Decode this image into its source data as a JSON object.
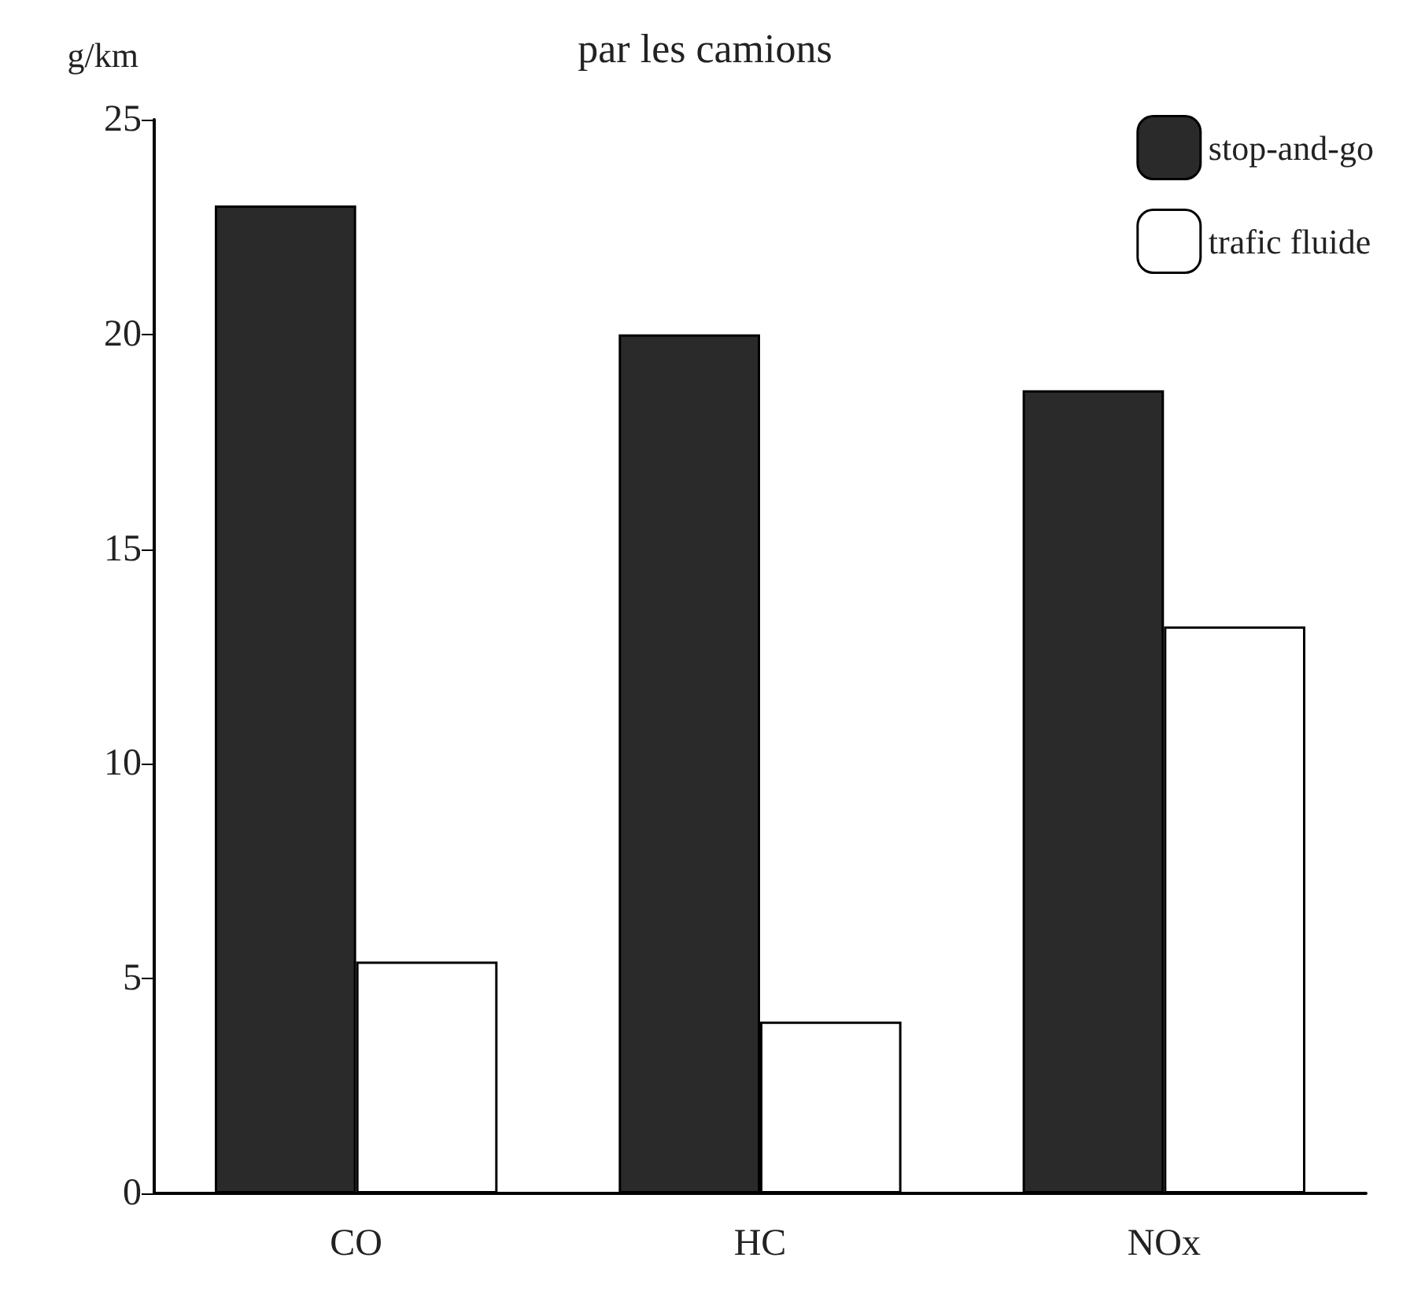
{
  "chart_data": {
    "type": "bar",
    "title": "par les camions",
    "ylabel": "g/km",
    "categories": [
      "CO",
      "HC",
      "NOx"
    ],
    "series": [
      {
        "name": "stop-and-go",
        "color": "#2a2a2a",
        "values": [
          23,
          20,
          18.7
        ]
      },
      {
        "name": "trafic fluide",
        "color": "#ffffff",
        "values": [
          5.4,
          4,
          13.2
        ]
      }
    ],
    "ylim": [
      0,
      25
    ],
    "yticks": [
      0,
      5,
      10,
      15,
      20,
      25
    ],
    "grid": false,
    "legend": "top right"
  }
}
